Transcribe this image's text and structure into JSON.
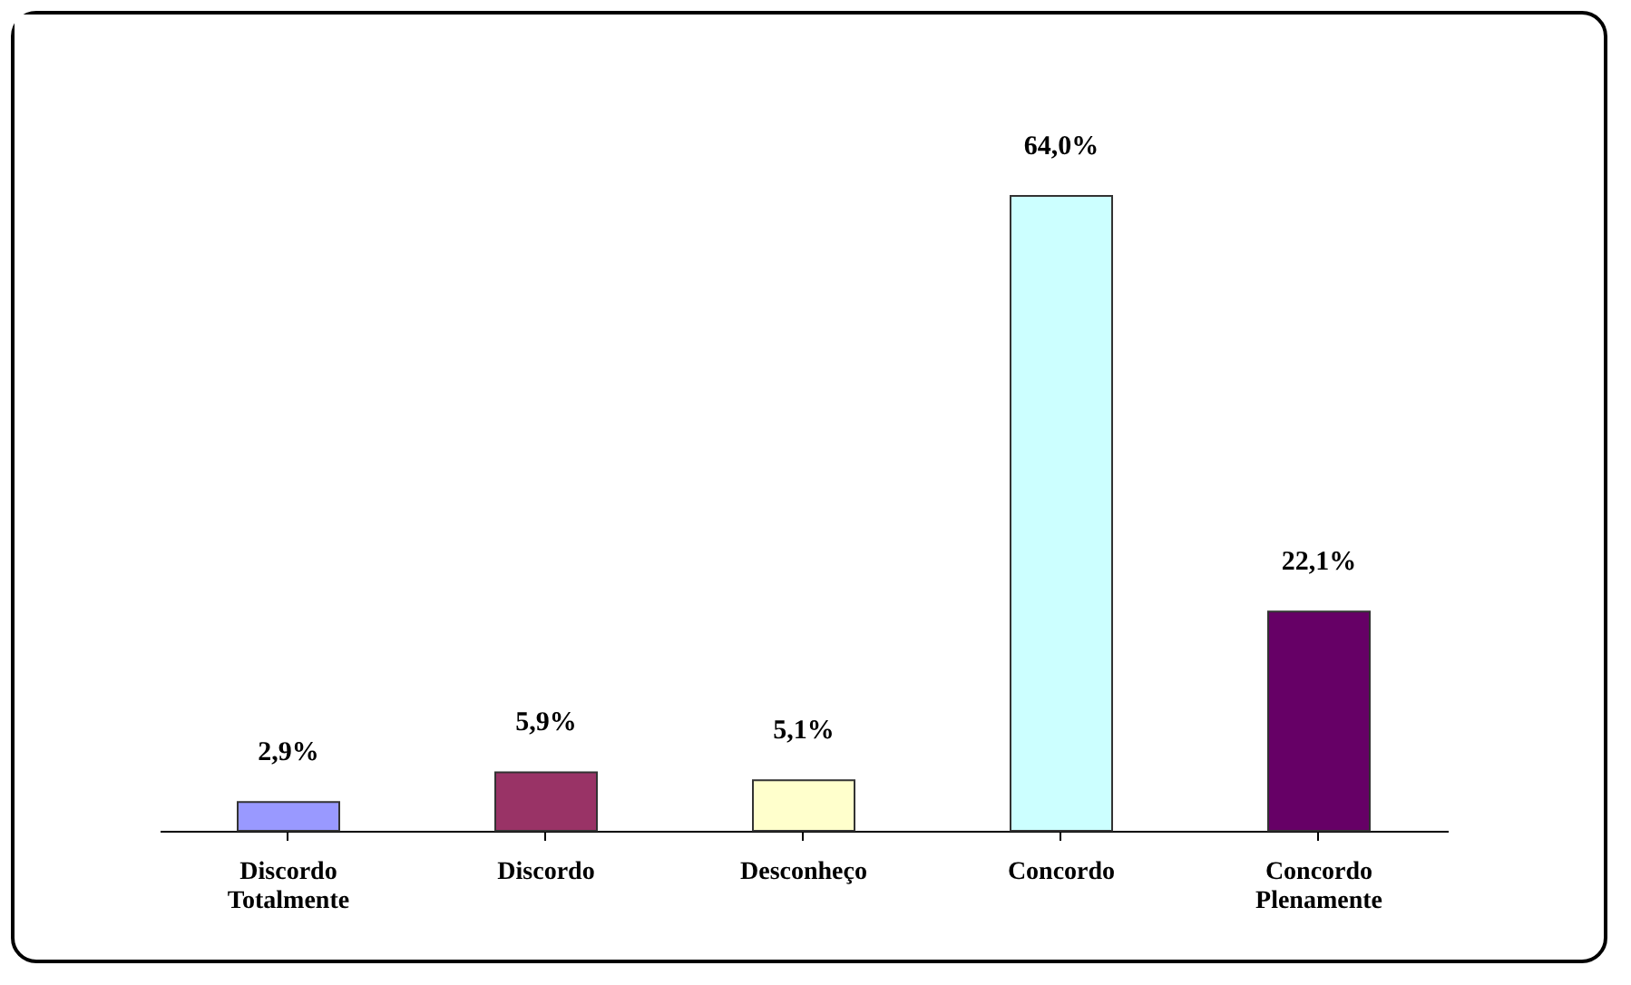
{
  "chart_data": {
    "type": "bar",
    "categories": [
      "Discordo\nTotalmente",
      "Discordo",
      "Desconheço",
      "Concordo",
      "Concordo\nPlenamente"
    ],
    "values": [
      2.9,
      5.9,
      5.1,
      64.0,
      22.1
    ],
    "value_labels": [
      "2,9%",
      "5,9%",
      "5,1%",
      "64,0%",
      "22,1%"
    ],
    "colors": [
      "#9999ff",
      "#993366",
      "#ffffcc",
      "#ccffff",
      "#660066"
    ]
  }
}
